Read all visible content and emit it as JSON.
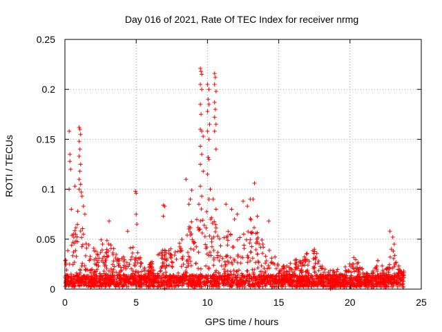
{
  "chart_data": {
    "type": "scatter",
    "title": "Day 016 of 2021, Rate Of TEC Index for receiver nrmg",
    "xlabel": "GPS time / hours",
    "ylabel": "ROTI / TECUs",
    "xlim": [
      0,
      25
    ],
    "ylim": [
      0,
      0.25
    ],
    "xticks": [
      0,
      5,
      10,
      15,
      20,
      25
    ],
    "xtick_labels": [
      "0",
      "5",
      "10",
      "15",
      "20",
      "25"
    ],
    "yticks": [
      0,
      0.05,
      0.1,
      0.15,
      0.2,
      0.25
    ],
    "ytick_labels": [
      "0",
      "0.05",
      "0.1",
      "0.15",
      "0.2",
      "0.25"
    ],
    "grid": true,
    "marker": "+",
    "color": "#ff0000",
    "data_range_hours": [
      0,
      23.8
    ],
    "baseline_roti": 0.012,
    "highlighted_points": [
      {
        "x": 0.3,
        "y": 0.158
      },
      {
        "x": 0.35,
        "y": 0.135
      },
      {
        "x": 0.35,
        "y": 0.128
      },
      {
        "x": 0.4,
        "y": 0.12
      },
      {
        "x": 0.3,
        "y": 0.1
      },
      {
        "x": 0.45,
        "y": 0.08
      },
      {
        "x": 0.7,
        "y": 0.103
      },
      {
        "x": 1.0,
        "y": 0.162
      },
      {
        "x": 1.05,
        "y": 0.16
      },
      {
        "x": 1.1,
        "y": 0.155
      },
      {
        "x": 1.0,
        "y": 0.148
      },
      {
        "x": 1.05,
        "y": 0.14
      },
      {
        "x": 1.0,
        "y": 0.133
      },
      {
        "x": 1.1,
        "y": 0.125
      },
      {
        "x": 1.05,
        "y": 0.118
      },
      {
        "x": 1.0,
        "y": 0.11
      },
      {
        "x": 1.1,
        "y": 0.105
      },
      {
        "x": 1.0,
        "y": 0.1
      },
      {
        "x": 1.15,
        "y": 0.097
      },
      {
        "x": 1.2,
        "y": 0.093
      },
      {
        "x": 1.3,
        "y": 0.083
      },
      {
        "x": 0.9,
        "y": 0.078
      },
      {
        "x": 1.4,
        "y": 0.075
      },
      {
        "x": 3.1,
        "y": 0.068
      },
      {
        "x": 4.4,
        "y": 0.058
      },
      {
        "x": 4.95,
        "y": 0.098
      },
      {
        "x": 5.0,
        "y": 0.096
      },
      {
        "x": 5.0,
        "y": 0.075
      },
      {
        "x": 5.05,
        "y": 0.065
      },
      {
        "x": 6.9,
        "y": 0.084
      },
      {
        "x": 7.0,
        "y": 0.083
      },
      {
        "x": 6.9,
        "y": 0.073
      },
      {
        "x": 8.5,
        "y": 0.11
      },
      {
        "x": 8.9,
        "y": 0.099
      },
      {
        "x": 8.8,
        "y": 0.09
      },
      {
        "x": 8.7,
        "y": 0.085
      },
      {
        "x": 9.5,
        "y": 0.221
      },
      {
        "x": 9.55,
        "y": 0.218
      },
      {
        "x": 9.6,
        "y": 0.215
      },
      {
        "x": 9.5,
        "y": 0.205
      },
      {
        "x": 9.6,
        "y": 0.2
      },
      {
        "x": 9.5,
        "y": 0.185
      },
      {
        "x": 9.55,
        "y": 0.175
      },
      {
        "x": 9.5,
        "y": 0.16
      },
      {
        "x": 9.6,
        "y": 0.158
      },
      {
        "x": 9.7,
        "y": 0.153
      },
      {
        "x": 9.5,
        "y": 0.143
      },
      {
        "x": 9.6,
        "y": 0.135
      },
      {
        "x": 9.5,
        "y": 0.125
      },
      {
        "x": 9.7,
        "y": 0.118
      },
      {
        "x": 9.5,
        "y": 0.103
      },
      {
        "x": 9.6,
        "y": 0.093
      },
      {
        "x": 9.4,
        "y": 0.085
      },
      {
        "x": 10.0,
        "y": 0.205
      },
      {
        "x": 10.1,
        "y": 0.2
      },
      {
        "x": 10.05,
        "y": 0.19
      },
      {
        "x": 10.1,
        "y": 0.185
      },
      {
        "x": 10.0,
        "y": 0.178
      },
      {
        "x": 10.15,
        "y": 0.165
      },
      {
        "x": 10.0,
        "y": 0.158
      },
      {
        "x": 10.1,
        "y": 0.15
      },
      {
        "x": 10.05,
        "y": 0.132
      },
      {
        "x": 10.1,
        "y": 0.13
      },
      {
        "x": 10.0,
        "y": 0.115
      },
      {
        "x": 10.2,
        "y": 0.1
      },
      {
        "x": 10.1,
        "y": 0.09
      },
      {
        "x": 10.5,
        "y": 0.216
      },
      {
        "x": 10.55,
        "y": 0.212
      },
      {
        "x": 10.5,
        "y": 0.205
      },
      {
        "x": 10.6,
        "y": 0.198
      },
      {
        "x": 10.5,
        "y": 0.187
      },
      {
        "x": 10.55,
        "y": 0.18
      },
      {
        "x": 10.5,
        "y": 0.172
      },
      {
        "x": 10.6,
        "y": 0.165
      },
      {
        "x": 10.5,
        "y": 0.158
      },
      {
        "x": 10.6,
        "y": 0.14
      },
      {
        "x": 10.4,
        "y": 0.09
      },
      {
        "x": 10.6,
        "y": 0.08
      },
      {
        "x": 11.3,
        "y": 0.085
      },
      {
        "x": 11.7,
        "y": 0.08
      },
      {
        "x": 11.9,
        "y": 0.07
      },
      {
        "x": 12.1,
        "y": 0.075
      },
      {
        "x": 12.5,
        "y": 0.088
      },
      {
        "x": 12.8,
        "y": 0.083
      },
      {
        "x": 13.0,
        "y": 0.09
      },
      {
        "x": 13.3,
        "y": 0.106
      },
      {
        "x": 13.2,
        "y": 0.09
      },
      {
        "x": 13.5,
        "y": 0.073
      },
      {
        "x": 14.3,
        "y": 0.068
      },
      {
        "x": 17.5,
        "y": 0.04
      },
      {
        "x": 22.8,
        "y": 0.058
      },
      {
        "x": 23.0,
        "y": 0.052
      },
      {
        "x": 23.1,
        "y": 0.045
      },
      {
        "x": 22.9,
        "y": 0.04
      }
    ],
    "activity_envelope": [
      {
        "x": 0.0,
        "y": 0.035
      },
      {
        "x": 0.5,
        "y": 0.055
      },
      {
        "x": 1.0,
        "y": 0.065
      },
      {
        "x": 1.5,
        "y": 0.05
      },
      {
        "x": 2.0,
        "y": 0.035
      },
      {
        "x": 2.5,
        "y": 0.045
      },
      {
        "x": 3.0,
        "y": 0.045
      },
      {
        "x": 3.5,
        "y": 0.035
      },
      {
        "x": 4.0,
        "y": 0.025
      },
      {
        "x": 4.5,
        "y": 0.035
      },
      {
        "x": 5.0,
        "y": 0.045
      },
      {
        "x": 5.5,
        "y": 0.015
      },
      {
        "x": 6.0,
        "y": 0.02
      },
      {
        "x": 6.5,
        "y": 0.03
      },
      {
        "x": 7.0,
        "y": 0.035
      },
      {
        "x": 7.5,
        "y": 0.04
      },
      {
        "x": 8.0,
        "y": 0.045
      },
      {
        "x": 8.5,
        "y": 0.05
      },
      {
        "x": 9.0,
        "y": 0.065
      },
      {
        "x": 9.5,
        "y": 0.08
      },
      {
        "x": 10.0,
        "y": 0.075
      },
      {
        "x": 10.5,
        "y": 0.065
      },
      {
        "x": 11.0,
        "y": 0.045
      },
      {
        "x": 11.5,
        "y": 0.055
      },
      {
        "x": 12.0,
        "y": 0.06
      },
      {
        "x": 12.5,
        "y": 0.055
      },
      {
        "x": 13.0,
        "y": 0.065
      },
      {
        "x": 13.5,
        "y": 0.055
      },
      {
        "x": 14.0,
        "y": 0.04
      },
      {
        "x": 14.5,
        "y": 0.03
      },
      {
        "x": 15.0,
        "y": 0.025
      },
      {
        "x": 15.5,
        "y": 0.02
      },
      {
        "x": 16.0,
        "y": 0.025
      },
      {
        "x": 16.5,
        "y": 0.025
      },
      {
        "x": 17.0,
        "y": 0.03
      },
      {
        "x": 17.5,
        "y": 0.035
      },
      {
        "x": 18.0,
        "y": 0.02
      },
      {
        "x": 18.5,
        "y": 0.012
      },
      {
        "x": 19.0,
        "y": 0.015
      },
      {
        "x": 19.5,
        "y": 0.012
      },
      {
        "x": 20.0,
        "y": 0.025
      },
      {
        "x": 20.5,
        "y": 0.028
      },
      {
        "x": 21.0,
        "y": 0.015
      },
      {
        "x": 21.5,
        "y": 0.012
      },
      {
        "x": 22.0,
        "y": 0.025
      },
      {
        "x": 22.5,
        "y": 0.015
      },
      {
        "x": 23.0,
        "y": 0.035
      },
      {
        "x": 23.5,
        "y": 0.015
      },
      {
        "x": 23.8,
        "y": 0.015
      }
    ]
  }
}
